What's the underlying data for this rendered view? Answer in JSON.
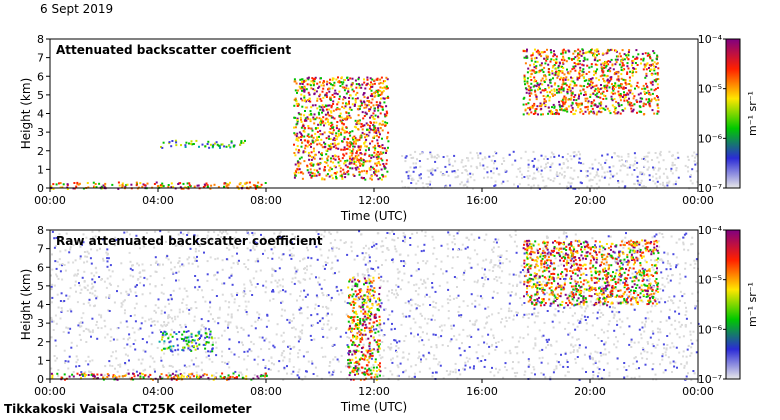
{
  "date": "6 Sept 2019",
  "footer": "Tikkakoski Vaisala CT25K ceilometer",
  "colorbar_label": "m⁻¹ sr⁻¹",
  "colorbar_ticks": [
    "10⁻⁴",
    "10⁻⁵",
    "10⁻⁶",
    "10⁻⁷"
  ],
  "chart_data": [
    {
      "type": "heatmap",
      "title": "Attenuated backscatter coefficient",
      "xlabel": "Time (UTC)",
      "ylabel": "Height (km)",
      "x_ticks": [
        "00:00",
        "04:00",
        "08:00",
        "12:00",
        "16:00",
        "20:00",
        "00:00"
      ],
      "y_ticks": [
        0,
        1,
        2,
        3,
        4,
        5,
        6,
        7,
        8
      ],
      "xlim_hours": [
        0,
        24
      ],
      "ylim": [
        0,
        8
      ],
      "colorbar": {
        "scale": "log",
        "range": [
          1e-07,
          0.0001
        ],
        "colors": [
          "#e8e8e8",
          "#2b2bd6",
          "#00c800",
          "#ffe600",
          "#ff2000",
          "#800080"
        ]
      },
      "layers": [
        {
          "name": "surface layer",
          "t_start": 0.0,
          "t_end": 8.0,
          "h_bottom": 0.0,
          "h_top": 0.35,
          "level": "high"
        },
        {
          "name": "elevated layer",
          "t_start": 4.0,
          "t_end": 7.2,
          "h_bottom": 2.2,
          "h_top": 2.6,
          "level": "mid"
        },
        {
          "name": "mid-level cloud",
          "t_start": 9.0,
          "t_end": 12.5,
          "h_bottom": 0.5,
          "h_top": 6.0,
          "level": "high"
        },
        {
          "name": "high cloud",
          "t_start": 17.5,
          "t_end": 22.5,
          "h_bottom": 4.0,
          "h_top": 7.5,
          "level": "high"
        },
        {
          "name": "clear-air noise",
          "t_start": 13.0,
          "t_end": 24.0,
          "h_bottom": 0.0,
          "h_top": 2.0,
          "level": "noise"
        }
      ]
    },
    {
      "type": "heatmap",
      "title": "Raw attenuated backscatter coefficient",
      "xlabel": "Time (UTC)",
      "ylabel": "Height (km)",
      "x_ticks": [
        "00:00",
        "04:00",
        "08:00",
        "12:00",
        "16:00",
        "20:00",
        "00:00"
      ],
      "y_ticks": [
        0,
        1,
        2,
        3,
        4,
        5,
        6,
        7,
        8
      ],
      "xlim_hours": [
        0,
        24
      ],
      "ylim": [
        0,
        8
      ],
      "colorbar": {
        "scale": "log",
        "range": [
          1e-07,
          0.0001
        ],
        "colors": [
          "#e8e8e8",
          "#2b2bd6",
          "#00c800",
          "#ffe600",
          "#ff2000",
          "#800080"
        ]
      },
      "layers": [
        {
          "name": "noise field",
          "t_start": 0.0,
          "t_end": 24.0,
          "h_bottom": 0.0,
          "h_top": 8.0,
          "level": "noise"
        },
        {
          "name": "surface layer",
          "t_start": 0.0,
          "t_end": 8.0,
          "h_bottom": 0.0,
          "h_top": 0.35,
          "level": "high"
        },
        {
          "name": "elevated layer",
          "t_start": 4.0,
          "t_end": 6.0,
          "h_bottom": 1.5,
          "h_top": 2.6,
          "level": "mid"
        },
        {
          "name": "mid-level cloud",
          "t_start": 11.0,
          "t_end": 12.2,
          "h_bottom": 0.0,
          "h_top": 5.5,
          "level": "high"
        },
        {
          "name": "high cloud",
          "t_start": 17.5,
          "t_end": 22.5,
          "h_bottom": 4.0,
          "h_top": 7.5,
          "level": "high"
        }
      ]
    }
  ]
}
